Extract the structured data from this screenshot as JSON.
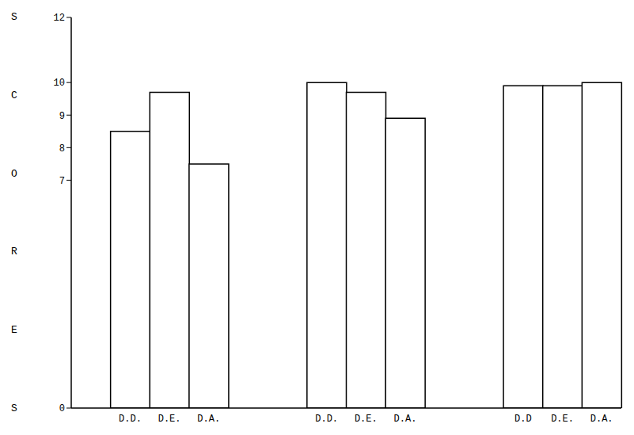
{
  "chart_data": {
    "type": "bar",
    "y_label": "SCORES",
    "categories": [
      null,
      "D.D.",
      "D.E.",
      "D.A.",
      null,
      null,
      "D.D.",
      "D.E.",
      "D.A.",
      null,
      null,
      "D.D",
      "D.E.",
      "D.A."
    ],
    "values": [
      null,
      8.5,
      9.7,
      7.5,
      null,
      null,
      10.0,
      9.7,
      8.9,
      null,
      null,
      9.9,
      9.9,
      10.0
    ],
    "color": "#ffffff",
    "ylim": [
      0,
      12
    ],
    "yticks": [
      0,
      7,
      8,
      9,
      10,
      12
    ],
    "grid": false
  }
}
